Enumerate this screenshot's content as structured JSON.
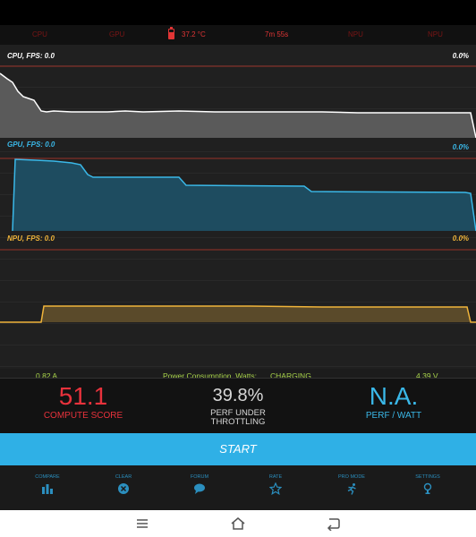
{
  "top_strip": {
    "labels": [
      "CPU",
      "GPU",
      "NPU",
      "NPU"
    ],
    "temperature": "37.2 °C",
    "elapsed": "7m 55s"
  },
  "graphs": {
    "cpu": {
      "label": "CPU, FPS:",
      "fps": "0.0",
      "percent": "0.0%"
    },
    "gpu": {
      "label": "GPU, FPS:",
      "fps": "0.0",
      "percent": "0.0%"
    },
    "npu": {
      "label": "NPU, FPS:",
      "fps": "0.0",
      "percent": "0.0%"
    }
  },
  "power": {
    "current": "0.82 A",
    "label": "Power Consumption, Watts:",
    "status": "CHARGING",
    "voltage": "4.39 V"
  },
  "scores": {
    "compute_value": "51.1",
    "compute_caption": "COMPUTE SCORE",
    "throttle_value": "39.8%",
    "throttle_caption_1": "PERF UNDER",
    "throttle_caption_2": "THROTTLING",
    "ppw_value": "N.A.",
    "ppw_caption": "PERF / WATT"
  },
  "start_label": "START",
  "nav": {
    "compare": "COMPARE",
    "clear": "CLEAR",
    "forum": "FORUM",
    "rate": "RATE",
    "pro_mode": "PRO MODE",
    "settings": "SETTINGS"
  },
  "colors": {
    "cpu": "#ffffff",
    "gpu": "#3ab8e8",
    "npu": "#f0b43a",
    "accent": "#2fb0e6",
    "compute": "#e8323c",
    "power": "#a8d34a"
  },
  "icons": [
    "battery-icon",
    "compare-icon",
    "clear-icon",
    "forum-icon",
    "rate-icon",
    "pro-mode-icon",
    "settings-icon",
    "menu-icon",
    "home-icon",
    "back-icon"
  ]
}
